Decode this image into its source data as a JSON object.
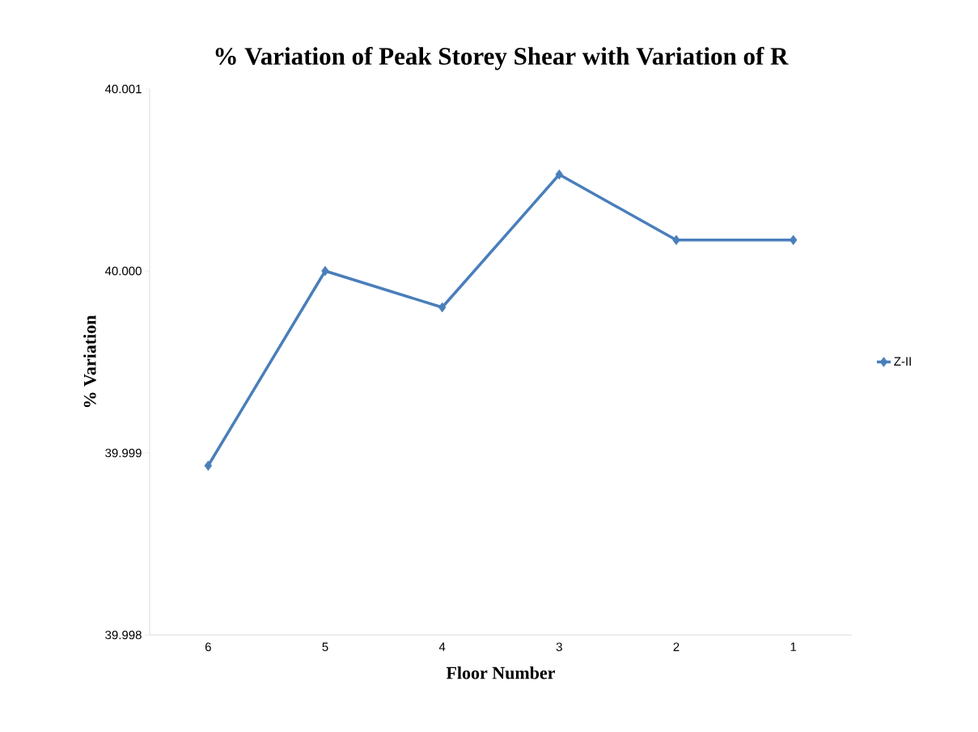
{
  "chart_data": {
    "type": "line",
    "title": "% Variation of Peak Storey Shear with Variation of R",
    "xlabel": "Floor Number",
    "ylabel": "% Variation",
    "categories": [
      "6",
      "5",
      "4",
      "3",
      "2",
      "1"
    ],
    "series": [
      {
        "name": "Z-II",
        "color": "#4a7ebb",
        "values": [
          39.99893,
          40.0,
          39.9998,
          40.00053,
          40.00017,
          40.00017
        ]
      }
    ],
    "ylim": [
      39.998,
      40.001
    ],
    "yticks": [
      {
        "value": 39.998,
        "label": "39.998"
      },
      {
        "value": 39.999,
        "label": "39.999"
      },
      {
        "value": 40.0,
        "label": "40.000"
      },
      {
        "value": 40.001,
        "label": "40.001"
      }
    ],
    "marker": "diamond",
    "legend": "right",
    "grid": false
  }
}
